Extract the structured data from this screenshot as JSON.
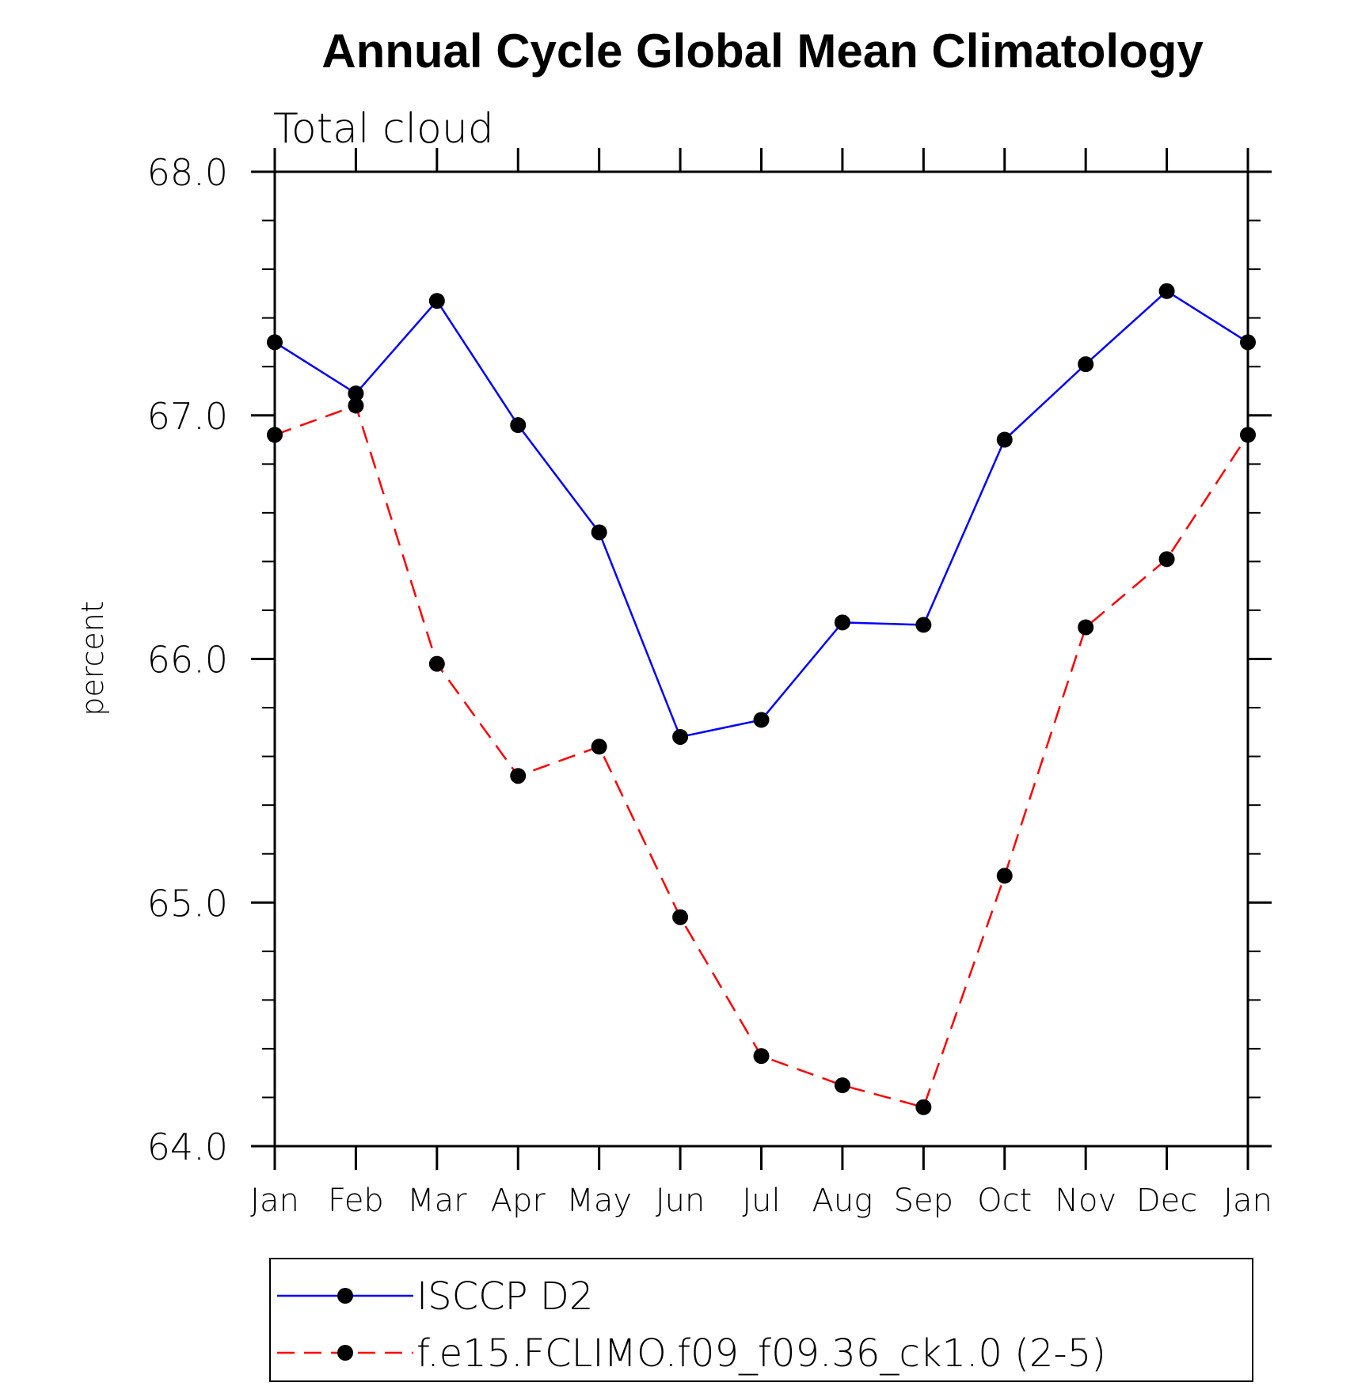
{
  "chart_data": {
    "type": "line",
    "title": "Annual Cycle Global Mean Climatology",
    "subtitle": "Total cloud",
    "xlabel": "",
    "ylabel": "percent",
    "categories": [
      "Jan",
      "Feb",
      "Mar",
      "Apr",
      "May",
      "Jun",
      "Jul",
      "Aug",
      "Sep",
      "Oct",
      "Nov",
      "Dec",
      "Jan"
    ],
    "ylim": [
      64.0,
      68.0
    ],
    "yticks": [
      "64.0",
      "65.0",
      "66.0",
      "67.0",
      "68.0"
    ],
    "grid": false,
    "legend_position": "bottom",
    "series": [
      {
        "name": "ISCCP D2",
        "color": "#0000ff",
        "style": "solid",
        "marker": "circle",
        "values": [
          67.3,
          67.09,
          67.47,
          66.96,
          66.52,
          65.68,
          65.75,
          66.15,
          66.14,
          66.9,
          67.21,
          67.51,
          67.3
        ]
      },
      {
        "name": "f.e15.FCLIMO.f09_f09.36_ck1.0 (2-5)",
        "color": "#ff0000",
        "style": "dashed",
        "marker": "circle",
        "values": [
          66.92,
          67.04,
          65.98,
          65.52,
          65.64,
          64.94,
          64.37,
          64.25,
          64.16,
          65.11,
          66.13,
          66.41,
          66.92
        ]
      }
    ]
  }
}
